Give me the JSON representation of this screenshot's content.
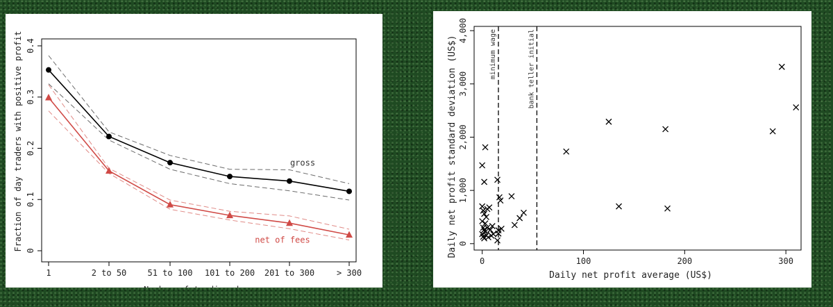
{
  "chart_data": [
    {
      "type": "line",
      "title": "",
      "xlabel": "Number of trading days",
      "ylabel": "Fraction of day traders with positive profit",
      "categories": [
        "1",
        "2 to 50",
        "51 to 100",
        "101 to 200",
        "201 to 300",
        "> 300"
      ],
      "ylim": [
        0,
        0.4
      ],
      "yticks": [
        "0",
        "0.1",
        "0.2",
        "0.3",
        "0.4"
      ],
      "grid": false,
      "series": [
        {
          "name": "gross",
          "color": "#000000",
          "marker": "circle",
          "values": [
            0.353,
            0.223,
            0.172,
            0.145,
            0.136,
            0.116
          ],
          "upper": [
            0.381,
            0.232,
            0.186,
            0.159,
            0.158,
            0.131
          ],
          "lower": [
            0.326,
            0.216,
            0.159,
            0.131,
            0.117,
            0.099
          ]
        },
        {
          "name": "net of fees",
          "color": "#d04a46",
          "marker": "triangle",
          "values": [
            0.299,
            0.156,
            0.09,
            0.069,
            0.054,
            0.031
          ],
          "upper": [
            0.324,
            0.161,
            0.099,
            0.077,
            0.068,
            0.042
          ],
          "lower": [
            0.273,
            0.151,
            0.081,
            0.06,
            0.043,
            0.021
          ]
        }
      ]
    },
    {
      "type": "scatter",
      "title": "",
      "xlabel": "Daily net profit average (US$)",
      "ylabel": "Daily net profit standard deviation (US$)",
      "xlim": [
        -8,
        315
      ],
      "ylim": [
        -120,
        4080
      ],
      "xticks": [
        0,
        100,
        200,
        300
      ],
      "xtick_labels": [
        "0",
        "100",
        "200",
        "300"
      ],
      "yticks": [
        0,
        1000,
        2000,
        3000,
        4000
      ],
      "ytick_labels": [
        "0",
        "1,000",
        "2,000",
        "3,000",
        "4,000"
      ],
      "grid": false,
      "marker": "x",
      "reference_lines": [
        {
          "x": 16,
          "label": "minimum wage"
        },
        {
          "x": 54,
          "label": "bank teller initial"
        }
      ],
      "points": [
        [
          0,
          1470
        ],
        [
          2,
          1160
        ],
        [
          3,
          1810
        ],
        [
          0,
          700
        ],
        [
          1,
          620
        ],
        [
          2,
          560
        ],
        [
          4,
          500
        ],
        [
          5,
          650
        ],
        [
          7,
          680
        ],
        [
          0,
          420
        ],
        [
          3,
          380
        ],
        [
          1,
          300
        ],
        [
          2,
          260
        ],
        [
          5,
          300
        ],
        [
          8,
          260
        ],
        [
          10,
          330
        ],
        [
          0,
          180
        ],
        [
          1,
          130
        ],
        [
          2,
          100
        ],
        [
          4,
          160
        ],
        [
          6,
          120
        ],
        [
          9,
          150
        ],
        [
          11,
          180
        ],
        [
          3,
          220
        ],
        [
          15,
          1200
        ],
        [
          17,
          870
        ],
        [
          18,
          810
        ],
        [
          16,
          250
        ],
        [
          16,
          190
        ],
        [
          19,
          280
        ],
        [
          15,
          60
        ],
        [
          29,
          890
        ],
        [
          32,
          350
        ],
        [
          37,
          480
        ],
        [
          41,
          580
        ],
        [
          83,
          1730
        ],
        [
          125,
          2290
        ],
        [
          135,
          700
        ],
        [
          181,
          2150
        ],
        [
          183,
          660
        ],
        [
          287,
          2110
        ],
        [
          296,
          3320
        ],
        [
          310,
          2560
        ]
      ]
    }
  ]
}
